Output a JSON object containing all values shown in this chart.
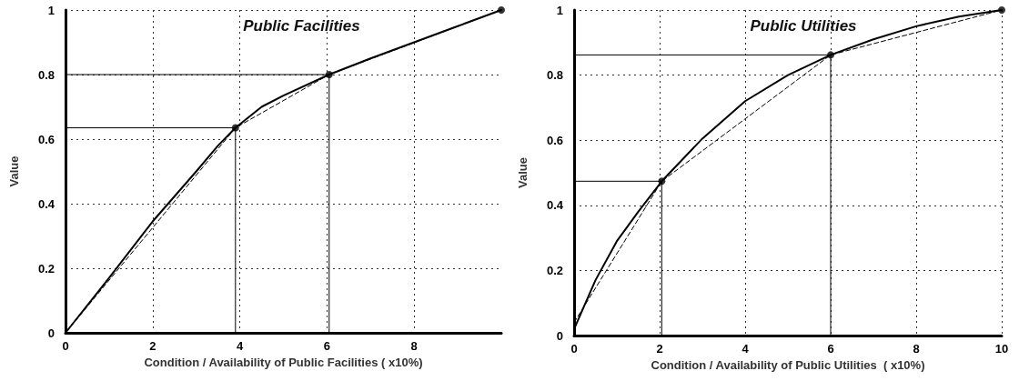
{
  "chart_data": [
    {
      "type": "line",
      "title": "Public Facilities",
      "xlabel": "Condition / Availability of Public Facilities ( x10%)",
      "ylabel": "Value",
      "xlim": [
        0,
        10
      ],
      "xticks": [
        0,
        2,
        4,
        6,
        8
      ],
      "ylim": [
        0,
        1
      ],
      "yticks": [
        0,
        0.2,
        0.4,
        0.6,
        0.8,
        1
      ],
      "grid": true,
      "series": [
        {
          "color": "#000000",
          "line_style": "solid",
          "marker": "none",
          "x": [
            0,
            1,
            2,
            3,
            3.5,
            3.9,
            4.5,
            5,
            6.05,
            7,
            8,
            9,
            10
          ],
          "values": [
            0,
            0.17,
            0.345,
            0.5,
            0.58,
            0.635,
            0.7,
            0.735,
            0.8,
            0.85,
            0.9,
            0.95,
            1
          ]
        },
        {
          "color": "#000000",
          "line_style": "dashed",
          "marker": "none",
          "x": [
            0,
            3.9,
            6.05,
            10
          ],
          "values": [
            0,
            0.635,
            0.8,
            1
          ]
        },
        {
          "color": "#000000",
          "line_style": "solid",
          "marker": "none",
          "x": [
            0,
            3.9,
            3.9
          ],
          "values": [
            0.635,
            0.635,
            0
          ]
        },
        {
          "color": "#000000",
          "line_style": "solid",
          "marker": "none",
          "x": [
            0,
            6.05,
            6.05
          ],
          "values": [
            0.8,
            0.8,
            0
          ]
        },
        {
          "type": "scatter",
          "color": "#000000",
          "marker": "circle",
          "x": [
            3.9,
            6.05,
            10
          ],
          "values": [
            0.635,
            0.8,
            1
          ]
        }
      ]
    },
    {
      "type": "line",
      "title": "Public Utilities",
      "xlabel": "Condition / Availability of Public Utilities  ( x10%)",
      "ylabel": "Value",
      "xlim": [
        0,
        10
      ],
      "xticks": [
        0,
        2,
        4,
        6,
        8,
        10
      ],
      "ylim": [
        0,
        1
      ],
      "yticks": [
        0,
        0.2,
        0.4,
        0.6,
        0.8,
        1
      ],
      "grid": true,
      "series": [
        {
          "color": "#000000",
          "line_style": "solid",
          "marker": "none",
          "x": [
            0,
            0.5,
            1,
            1.5,
            2.05,
            3,
            4,
            5,
            6,
            7,
            8,
            9,
            10
          ],
          "values": [
            0.02,
            0.17,
            0.29,
            0.38,
            0.474,
            0.605,
            0.72,
            0.8,
            0.862,
            0.91,
            0.95,
            0.98,
            1
          ]
        },
        {
          "color": "#000000",
          "line_style": "dashed",
          "marker": "none",
          "x": [
            0,
            2.05,
            6,
            10
          ],
          "values": [
            0.04,
            0.474,
            0.862,
            1
          ]
        },
        {
          "color": "#000000",
          "line_style": "solid",
          "marker": "none",
          "x": [
            0,
            2.05,
            2.05
          ],
          "values": [
            0.474,
            0.474,
            0
          ]
        },
        {
          "color": "#000000",
          "line_style": "solid",
          "marker": "none",
          "x": [
            0,
            6,
            6
          ],
          "values": [
            0.862,
            0.862,
            0
          ]
        },
        {
          "type": "scatter",
          "color": "#000000",
          "marker": "circle",
          "x": [
            2.05,
            6,
            10
          ],
          "values": [
            0.474,
            0.862,
            1
          ]
        }
      ]
    }
  ]
}
